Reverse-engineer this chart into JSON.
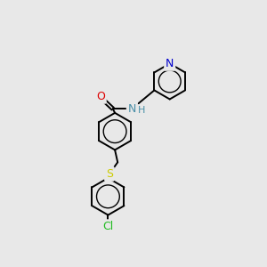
{
  "background_color": "#e8e8e8",
  "bond_color": "#000000",
  "atom_colors": {
    "N_pyridine": "#0000cc",
    "N_amide": "#4a8fa8",
    "O": "#dd0000",
    "S": "#cccc00",
    "Cl": "#22bb22",
    "H": "#4a8fa8"
  },
  "bond_lw": 1.4,
  "inner_lw": 1.0,
  "figsize": [
    3.0,
    3.0
  ],
  "dpi": 100
}
